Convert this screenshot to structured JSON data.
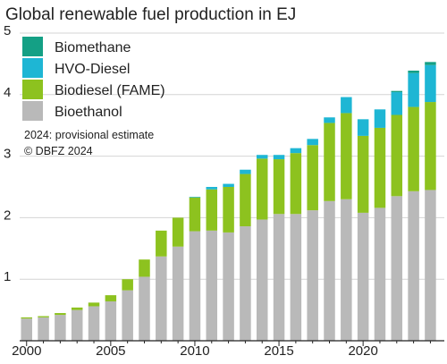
{
  "chart_data": {
    "type": "bar",
    "stacked": true,
    "title": "Global renewable fuel production in EJ",
    "xlabel": "",
    "ylabel": "",
    "ylim": [
      0,
      5
    ],
    "y_ticks": [
      "1",
      "2",
      "3",
      "4",
      "5"
    ],
    "x_ticks": [
      "2000",
      "2005",
      "2010",
      "2015",
      "2020"
    ],
    "grid": true,
    "legend_position": "top-left",
    "notes": [
      "2024: provisional estimate",
      "© DBFZ 2024"
    ],
    "categories": [
      "2000",
      "2001",
      "2002",
      "2003",
      "2004",
      "2005",
      "2006",
      "2007",
      "2008",
      "2009",
      "2010",
      "2011",
      "2012",
      "2013",
      "2014",
      "2015",
      "2016",
      "2017",
      "2018",
      "2019",
      "2020",
      "2021",
      "2022",
      "2023",
      "2024"
    ],
    "series": [
      {
        "name": "Bioethanol",
        "color": "#b9b9b9",
        "values": [
          0.36,
          0.38,
          0.42,
          0.5,
          0.56,
          0.64,
          0.82,
          1.04,
          1.37,
          1.53,
          1.78,
          1.79,
          1.76,
          1.86,
          1.97,
          2.06,
          2.06,
          2.12,
          2.27,
          2.3,
          2.08,
          2.16,
          2.35,
          2.43,
          2.45
        ]
      },
      {
        "name": "Biodiesel (FAME)",
        "color": "#8dc21f",
        "values": [
          0.02,
          0.02,
          0.03,
          0.04,
          0.06,
          0.1,
          0.18,
          0.28,
          0.42,
          0.47,
          0.55,
          0.67,
          0.74,
          0.85,
          0.99,
          0.89,
          0.99,
          1.06,
          1.27,
          1.4,
          1.25,
          1.3,
          1.32,
          1.37,
          1.43
        ]
      },
      {
        "name": "HVO-Diesel",
        "color": "#1eb6d4",
        "values": [
          0,
          0,
          0,
          0,
          0,
          0,
          0,
          0,
          0,
          0,
          0.01,
          0.04,
          0.05,
          0.07,
          0.06,
          0.07,
          0.08,
          0.1,
          0.09,
          0.26,
          0.27,
          0.3,
          0.37,
          0.55,
          0.6
        ]
      },
      {
        "name": "Biomethane",
        "color": "#14a085",
        "values": [
          0,
          0,
          0,
          0,
          0,
          0,
          0,
          0,
          0,
          0,
          0,
          0,
          0,
          0,
          0,
          0,
          0,
          0,
          0,
          0,
          0,
          0,
          0.02,
          0.04,
          0.05
        ]
      }
    ]
  }
}
